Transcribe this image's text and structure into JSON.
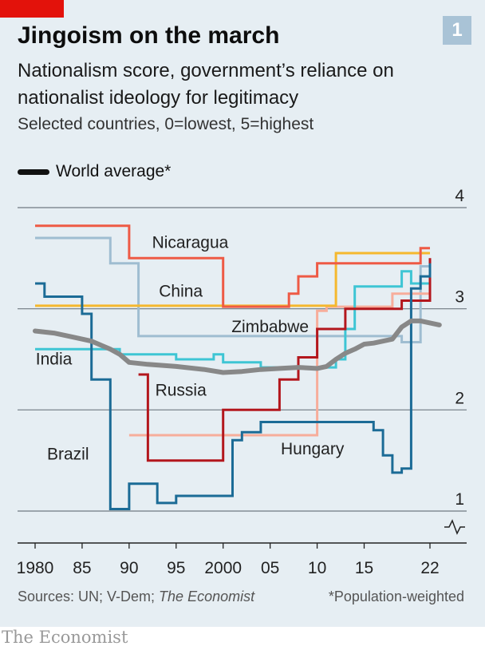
{
  "header": {
    "badge": "1"
  },
  "footer": {
    "sources_prefix": "Sources: UN; V-Dem; ",
    "sources_italic": "The Economist",
    "note": "*Population-weighted",
    "brand": "The Economist"
  },
  "colors": {
    "panel": "#e6eef3",
    "accent_red": "#e3120b",
    "World average": "#111111",
    "Nicaragua": "#ee5a45",
    "China": "#f5b82e",
    "Zimbabwe": "#9fbdd1",
    "India": "#3ec5d4",
    "Russia": "#b3171d",
    "Brazil": "#1b6b96",
    "Hungary": "#f7ad9b"
  },
  "chart_data": {
    "type": "line",
    "title": "Jingoism on the march",
    "subtitle": "Nationalism score, government’s reliance on nationalist ideology for legitimacy",
    "subtitle2": "Selected countries, 0=lowest, 5=highest",
    "xlabel": "",
    "ylabel": "",
    "xlim": [
      1979,
      2024
    ],
    "ylim": [
      0.7,
      4
    ],
    "y_axis_break": true,
    "grid": true,
    "legend": {
      "position": "top-left",
      "entries": [
        "World average*"
      ]
    },
    "x_ticks": [
      {
        "value": 1980,
        "label": "1980"
      },
      {
        "value": 1985,
        "label": "85"
      },
      {
        "value": 1990,
        "label": "90"
      },
      {
        "value": 1995,
        "label": "95"
      },
      {
        "value": 2000,
        "label": "2000"
      },
      {
        "value": 2005,
        "label": "05"
      },
      {
        "value": 2010,
        "label": "10"
      },
      {
        "value": 2015,
        "label": "15"
      },
      {
        "value": 2022,
        "label": "22"
      }
    ],
    "y_ticks": [
      {
        "value": 1,
        "label": "1"
      },
      {
        "value": 2,
        "label": "2"
      },
      {
        "value": 3,
        "label": "3"
      },
      {
        "value": 4,
        "label": "4"
      }
    ],
    "series": [
      {
        "name": "Zimbabwe",
        "shape": "step",
        "label": {
          "text": "Zimbabwe",
          "x": 2005,
          "y": 2.77
        },
        "points": [
          [
            1980,
            3.7
          ],
          [
            1988,
            3.7
          ],
          [
            1988,
            3.45
          ],
          [
            1991,
            3.45
          ],
          [
            1991,
            2.73
          ],
          [
            2019,
            2.73
          ],
          [
            2019,
            2.67
          ],
          [
            2021,
            2.67
          ],
          [
            2021,
            3.42
          ],
          [
            2022,
            3.42
          ]
        ]
      },
      {
        "name": "Hungary",
        "shape": "step",
        "label": {
          "text": "Hungary",
          "x": 2009.5,
          "y": 1.56
        },
        "points": [
          [
            1990,
            1.75
          ],
          [
            2010,
            1.75
          ],
          [
            2010,
            2.98
          ],
          [
            2011,
            2.98
          ],
          [
            2011,
            3.02
          ],
          [
            2018,
            3.02
          ],
          [
            2018,
            3.15
          ],
          [
            2022,
            3.15
          ]
        ]
      },
      {
        "name": "India",
        "shape": "step",
        "label": {
          "text": "India",
          "x": 1982,
          "y": 2.45
        },
        "points": [
          [
            1980,
            2.6
          ],
          [
            1989,
            2.6
          ],
          [
            1989,
            2.55
          ],
          [
            1995,
            2.55
          ],
          [
            1995,
            2.5
          ],
          [
            1999,
            2.5
          ],
          [
            1999,
            2.55
          ],
          [
            2000,
            2.55
          ],
          [
            2000,
            2.47
          ],
          [
            2004,
            2.47
          ],
          [
            2004,
            2.42
          ],
          [
            2012,
            2.42
          ],
          [
            2012,
            2.5
          ],
          [
            2013,
            2.5
          ],
          [
            2013,
            2.8
          ],
          [
            2014,
            2.8
          ],
          [
            2014,
            3.22
          ],
          [
            2019,
            3.22
          ],
          [
            2019,
            3.37
          ],
          [
            2020,
            3.37
          ],
          [
            2020,
            3.25
          ],
          [
            2022,
            3.25
          ]
        ]
      },
      {
        "name": "China",
        "shape": "step",
        "label": {
          "text": "China",
          "x": 1995.5,
          "y": 3.12
        },
        "points": [
          [
            1980,
            3.03
          ],
          [
            2012,
            3.03
          ],
          [
            2012,
            3.55
          ],
          [
            2022,
            3.55
          ]
        ]
      },
      {
        "name": "Nicaragua",
        "shape": "step",
        "label": {
          "text": "Nicaragua",
          "x": 1996.5,
          "y": 3.6
        },
        "points": [
          [
            1980,
            3.82
          ],
          [
            1990,
            3.82
          ],
          [
            1990,
            3.5
          ],
          [
            2000,
            3.5
          ],
          [
            2000,
            3.02
          ],
          [
            2007,
            3.02
          ],
          [
            2007,
            3.15
          ],
          [
            2008,
            3.15
          ],
          [
            2008,
            3.32
          ],
          [
            2010,
            3.32
          ],
          [
            2010,
            3.45
          ],
          [
            2021,
            3.45
          ],
          [
            2021,
            3.6
          ],
          [
            2022,
            3.6
          ]
        ]
      },
      {
        "name": "Russia",
        "shape": "step",
        "label": {
          "text": "Russia",
          "x": 1995.5,
          "y": 2.14
        },
        "points": [
          [
            1991,
            2.35
          ],
          [
            1992,
            2.35
          ],
          [
            1992,
            1.5
          ],
          [
            2000,
            1.5
          ],
          [
            2000,
            2.0
          ],
          [
            2006,
            2.0
          ],
          [
            2006,
            2.3
          ],
          [
            2008,
            2.3
          ],
          [
            2008,
            2.52
          ],
          [
            2010,
            2.52
          ],
          [
            2010,
            2.8
          ],
          [
            2013,
            2.8
          ],
          [
            2013,
            3.0
          ],
          [
            2019,
            3.0
          ],
          [
            2019,
            3.08
          ],
          [
            2022,
            3.08
          ],
          [
            2022,
            3.5
          ]
        ]
      },
      {
        "name": "Brazil",
        "shape": "step",
        "label": {
          "text": "Brazil",
          "x": 1983.5,
          "y": 1.51
        },
        "points": [
          [
            1980,
            3.25
          ],
          [
            1981,
            3.25
          ],
          [
            1981,
            3.12
          ],
          [
            1985,
            3.12
          ],
          [
            1985,
            2.95
          ],
          [
            1986,
            2.95
          ],
          [
            1986,
            2.3
          ],
          [
            1988,
            2.3
          ],
          [
            1988,
            1.02
          ],
          [
            1990,
            1.02
          ],
          [
            1990,
            1.27
          ],
          [
            1993,
            1.27
          ],
          [
            1993,
            1.08
          ],
          [
            1995,
            1.08
          ],
          [
            1995,
            1.15
          ],
          [
            2001,
            1.15
          ],
          [
            2001,
            1.7
          ],
          [
            2002,
            1.7
          ],
          [
            2002,
            1.78
          ],
          [
            2004,
            1.78
          ],
          [
            2004,
            1.88
          ],
          [
            2016,
            1.88
          ],
          [
            2016,
            1.8
          ],
          [
            2017,
            1.8
          ],
          [
            2017,
            1.55
          ],
          [
            2018,
            1.55
          ],
          [
            2018,
            1.38
          ],
          [
            2019,
            1.38
          ],
          [
            2019,
            1.42
          ],
          [
            2020,
            1.42
          ],
          [
            2020,
            3.2
          ],
          [
            2021,
            3.2
          ],
          [
            2021,
            3.32
          ],
          [
            2022,
            3.32
          ],
          [
            2022,
            3.45
          ]
        ]
      },
      {
        "name": "World average*",
        "shape": "line",
        "label": null,
        "points": [
          [
            1980,
            2.78
          ],
          [
            1982,
            2.76
          ],
          [
            1984,
            2.72
          ],
          [
            1986,
            2.68
          ],
          [
            1988,
            2.6
          ],
          [
            1989,
            2.55
          ],
          [
            1990,
            2.47
          ],
          [
            1992,
            2.45
          ],
          [
            1995,
            2.43
          ],
          [
            1998,
            2.4
          ],
          [
            2000,
            2.37
          ],
          [
            2002,
            2.38
          ],
          [
            2004,
            2.4
          ],
          [
            2006,
            2.41
          ],
          [
            2008,
            2.42
          ],
          [
            2010,
            2.41
          ],
          [
            2011,
            2.43
          ],
          [
            2012,
            2.5
          ],
          [
            2013,
            2.56
          ],
          [
            2014,
            2.6
          ],
          [
            2015,
            2.65
          ],
          [
            2016,
            2.66
          ],
          [
            2017,
            2.68
          ],
          [
            2018,
            2.7
          ],
          [
            2019,
            2.82
          ],
          [
            2020,
            2.88
          ],
          [
            2021,
            2.88
          ],
          [
            2022,
            2.86
          ],
          [
            2023,
            2.84
          ]
        ]
      }
    ]
  }
}
